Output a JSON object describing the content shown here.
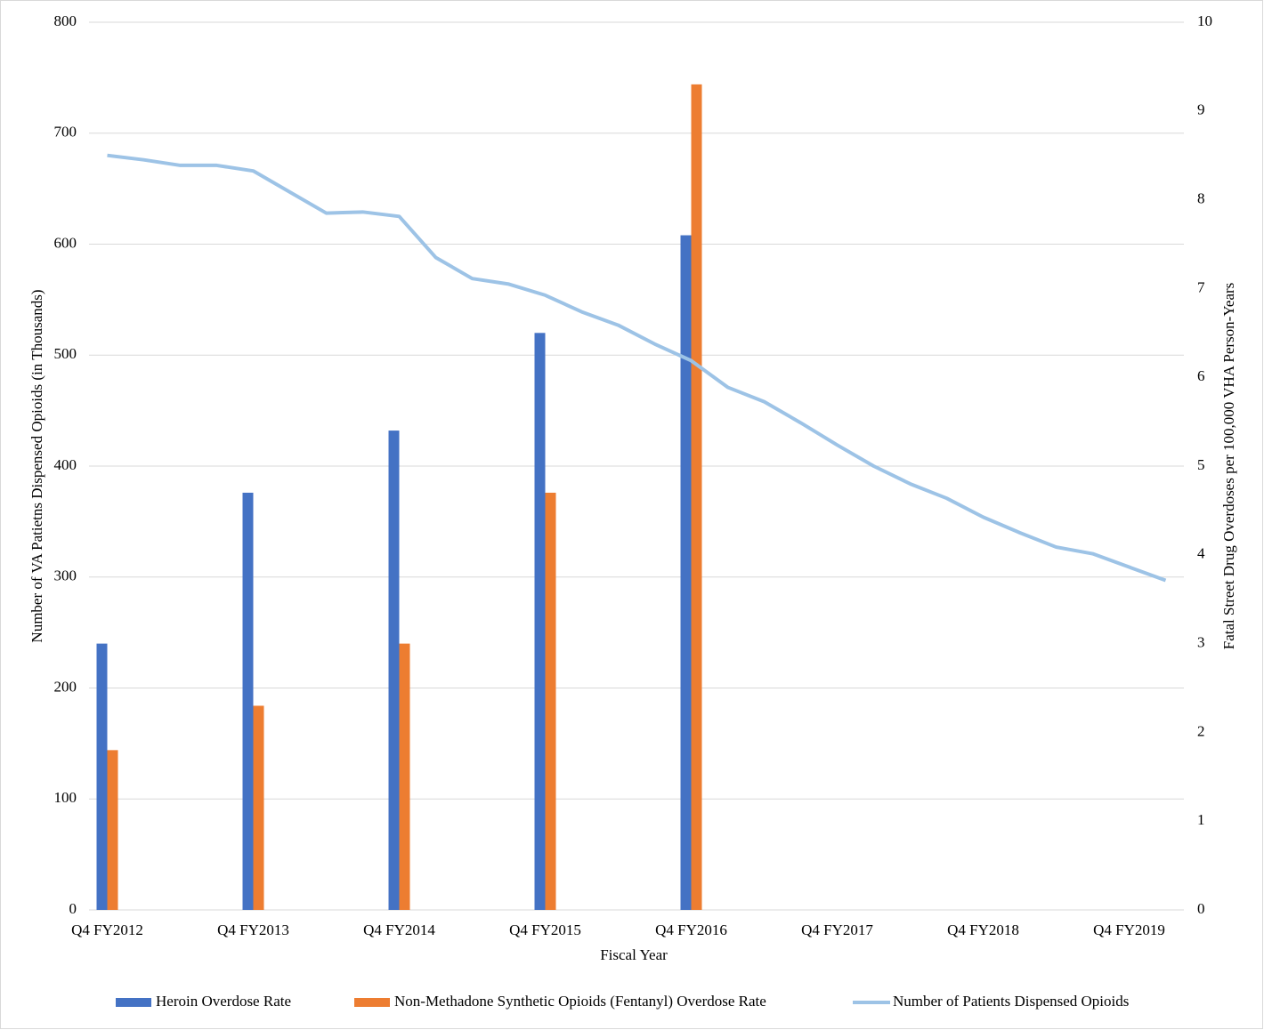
{
  "chart_data": {
    "type": "bar",
    "x_label": "Fiscal Year",
    "y_label": "Number of VA Patietns Dispensed Opioids (in Thousands)",
    "y2_label": "Fatal Street Drug Overdoses per 100,000 VHA Person-Years",
    "categories": [
      "Q4 FY2012",
      null,
      null,
      null,
      "Q4 FY2013",
      null,
      null,
      null,
      "Q4 FY2014",
      null,
      null,
      null,
      "Q4 FY2015",
      null,
      null,
      null,
      "Q4 FY2016",
      null,
      null,
      null,
      "Q4 FY2017",
      null,
      null,
      null,
      "Q4 FY2018",
      null,
      null,
      null,
      "Q4 FY2019",
      null
    ],
    "series": [
      {
        "name": "Heroin Overdose Rate",
        "type": "bar",
        "axis": "y2",
        "color": "#4472c4",
        "values": [
          3.0,
          null,
          null,
          null,
          4.7,
          null,
          null,
          null,
          5.4,
          null,
          null,
          null,
          6.5,
          null,
          null,
          null,
          7.6,
          null,
          null,
          null,
          null,
          null,
          null,
          null,
          null,
          null,
          null,
          null,
          null,
          null
        ]
      },
      {
        "name": "Non-Methadone Synthetic Opioids (Fentanyl) Overdose Rate",
        "type": "bar",
        "axis": "y2",
        "color": "#ed7d31",
        "values": [
          1.8,
          null,
          null,
          null,
          2.3,
          null,
          null,
          null,
          3.0,
          null,
          null,
          null,
          4.7,
          null,
          null,
          null,
          9.3,
          null,
          null,
          null,
          null,
          null,
          null,
          null,
          null,
          null,
          null,
          null,
          null,
          null
        ]
      },
      {
        "name": "Number of Patients Dispensed Opioids",
        "type": "line",
        "axis": "y",
        "color": "#9dc3e6",
        "values": [
          680,
          676,
          671,
          671,
          666,
          647,
          628,
          629,
          625,
          588,
          569,
          564,
          554,
          539,
          527,
          510,
          495,
          471,
          458,
          439,
          419,
          400,
          384,
          371,
          354,
          340,
          327,
          321,
          309,
          297
        ]
      }
    ],
    "ylim": [
      0,
      800
    ],
    "yticks": [
      0,
      100,
      200,
      300,
      400,
      500,
      600,
      700,
      800
    ],
    "y2lim": [
      0,
      10
    ],
    "y2ticks": [
      0,
      1,
      2,
      3,
      4,
      5,
      6,
      7,
      8,
      9,
      10
    ],
    "grid": true,
    "legend": "bottom"
  }
}
